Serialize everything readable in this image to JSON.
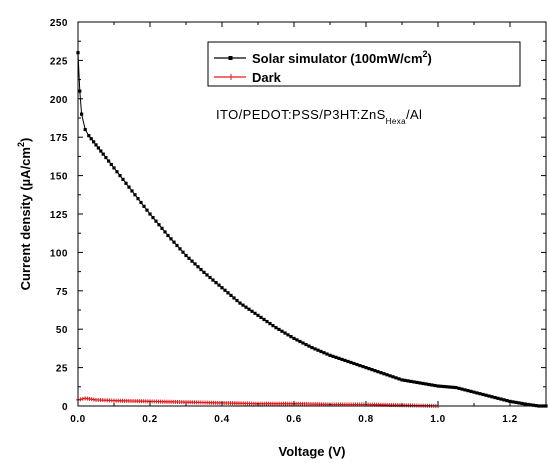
{
  "chart_data": {
    "type": "line",
    "xlabel": "Voltage (V)",
    "ylabel_prefix": "Current density (µA/cm",
    "ylabel_sup": "2",
    "ylabel_suffix": ")",
    "xlim": [
      0.0,
      1.3
    ],
    "ylim": [
      0,
      250
    ],
    "xticks": [
      0.0,
      0.2,
      0.4,
      0.6,
      0.8,
      1.0,
      1.2
    ],
    "xtick_labels": [
      "0.0",
      "0.2",
      "0.4",
      "0.6",
      "0.8",
      "1.0",
      "1.2"
    ],
    "yticks": [
      0,
      25,
      50,
      75,
      100,
      125,
      150,
      175,
      200,
      225,
      250
    ],
    "ytick_labels": [
      "0",
      "25",
      "50",
      "75",
      "100",
      "125",
      "150",
      "175",
      "200",
      "225",
      "250"
    ],
    "grid": false,
    "legend_position": "top-right",
    "annotation": {
      "main": "ITO/PEDOT:PSS/P3HT:ZnS",
      "sub": "Hexa",
      "tail": "/Al"
    },
    "series": [
      {
        "name_main": "Solar simulator (100mW/cm",
        "name_sup": "2",
        "name_tail": ")",
        "color": "#000000",
        "marker": "square",
        "x": [
          0.0,
          0.005,
          0.01,
          0.02,
          0.03,
          0.05,
          0.07,
          0.1,
          0.15,
          0.2,
          0.25,
          0.3,
          0.35,
          0.4,
          0.45,
          0.5,
          0.55,
          0.6,
          0.65,
          0.7,
          0.75,
          0.8,
          0.85,
          0.9,
          0.95,
          1.0,
          1.05,
          1.1,
          1.15,
          1.2,
          1.25,
          1.28,
          1.3
        ],
        "y": [
          230,
          205,
          190,
          180,
          176,
          170,
          164,
          155,
          140,
          125,
          111,
          98,
          87,
          77,
          67,
          59,
          51,
          44,
          38,
          33,
          29,
          25,
          21,
          17,
          15,
          13,
          12,
          9,
          6,
          3,
          1,
          0,
          0
        ]
      },
      {
        "name": "Dark",
        "color": "#e41a1c",
        "marker": "cross",
        "x": [
          0.0,
          0.02,
          0.05,
          0.1,
          0.2,
          0.3,
          0.4,
          0.5,
          0.6,
          0.7,
          0.8,
          0.9,
          1.0
        ],
        "y": [
          4,
          5,
          4,
          3.5,
          3,
          2.5,
          2,
          1.5,
          1.5,
          1,
          1,
          0.5,
          0
        ]
      }
    ]
  }
}
